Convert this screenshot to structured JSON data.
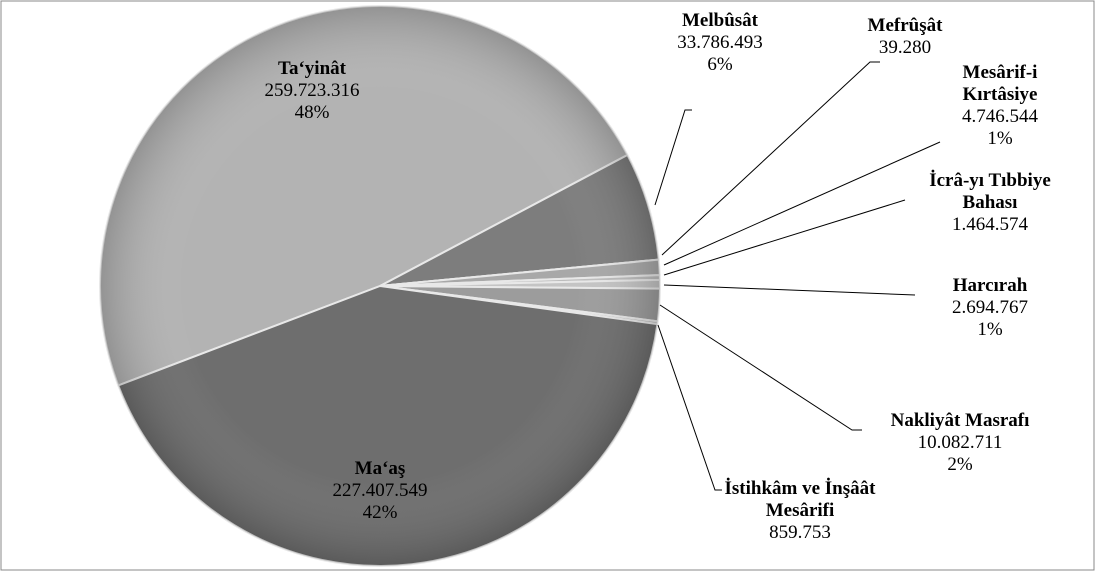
{
  "chart_data": {
    "type": "pie",
    "categories": [
      "Ta‘yinât",
      "Melbûsât",
      "Mefrûşât",
      "Mesârif-i Kırtâsiye",
      "İcrâ-yı Tıbbiye Bahası",
      "Harcırah",
      "Nakliyât Masrafı",
      "İstihkâm ve İnşâât Mesârifi",
      "Ma‘aş"
    ],
    "values": [
      259723316,
      33786493,
      39280,
      4746544,
      1464574,
      2694767,
      10082711,
      859753,
      227407549
    ],
    "value_labels": [
      "259.723.316",
      "33.786.493",
      "39.280",
      "4.746.544",
      "1.464.574",
      "2.694.767",
      "10.082.711",
      "859.753",
      "227.407.549"
    ],
    "percent_labels": [
      "48%",
      "6%",
      null,
      "1%",
      null,
      "1%",
      "2%",
      null,
      "42%"
    ],
    "colors": [
      "#b3b3b3",
      "#7d7d7d",
      "#9a9a9a",
      "#a8a8a8",
      "#bdbdbd",
      "#c4c4c4",
      "#9c9c9c",
      "#b8b8b8",
      "#6e6e6e"
    ]
  }
}
